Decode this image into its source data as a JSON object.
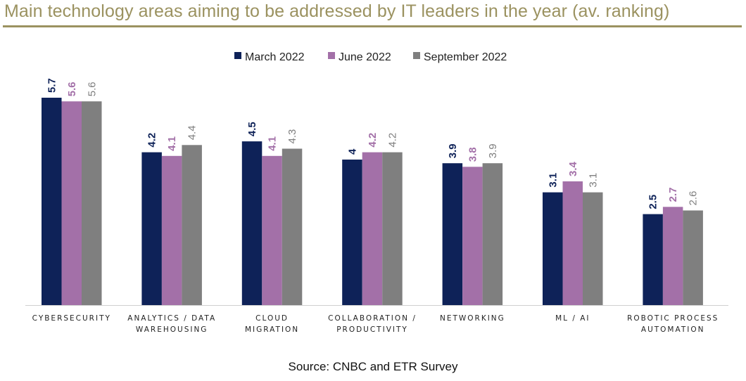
{
  "header": {
    "title": "Main technology areas aiming to be addressed by IT leaders in the year (av. ranking)"
  },
  "footer": {
    "source": "Source: CNBC and ETR Survey"
  },
  "chart_data": {
    "type": "bar",
    "title": "Main technology areas aiming to be addressed by IT leaders in the year (av. ranking)",
    "categories": [
      [
        "CYBERSECURITY"
      ],
      [
        "ANALYTICS / DATA",
        "WAREHOUSING"
      ],
      [
        "CLOUD",
        "MIGRATION"
      ],
      [
        "COLLABORATION /",
        "PRODUCTIVITY"
      ],
      [
        "NETWORKING"
      ],
      [
        "ML / AI"
      ],
      [
        "ROBOTIC PROCESS",
        "AUTOMATION"
      ]
    ],
    "series": [
      {
        "name": "March 2022",
        "color": "#0e2258",
        "label_color": "#0e2258",
        "bold_labels": true,
        "values": [
          5.7,
          4.2,
          4.5,
          4,
          3.9,
          3.1,
          2.5
        ]
      },
      {
        "name": "June 2022",
        "color": "#a370a8",
        "label_color": "#a370a8",
        "bold_labels": true,
        "values": [
          5.6,
          4.1,
          4.1,
          4.2,
          3.8,
          3.4,
          2.7
        ]
      },
      {
        "name": "September 2022",
        "color": "#7f7f7f",
        "label_color": "#7f7f7f",
        "bold_labels": false,
        "values": [
          5.6,
          4.4,
          4.3,
          4.2,
          3.9,
          3.1,
          2.6
        ]
      }
    ],
    "ylim": [
      0,
      5.7
    ],
    "grid": false,
    "legend": "top-center",
    "xlabel": "",
    "ylabel": ""
  }
}
